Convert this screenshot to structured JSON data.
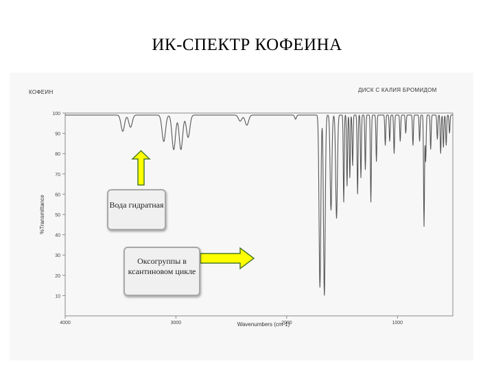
{
  "slide": {
    "title": "ИК-СПЕКТР КОФЕИНА"
  },
  "scan": {
    "sample_label": "КОФЕИН",
    "method_label": "ДИСК С КАЛИЯ БРОМИДОМ"
  },
  "callouts": {
    "water": "Вода гидратная",
    "oxo": "Оксогруппы в ксантиновом цикле"
  },
  "colors": {
    "arrow_fill": "#ffff00",
    "arrow_stroke": "#4a7a2a",
    "callout_border": "#a8a8a8",
    "trace": "#555555"
  },
  "chart_data": {
    "type": "line",
    "title": "",
    "xlabel": "Wavenumbers (cm-1)",
    "ylabel": "%Transmittance",
    "xlim": [
      4000,
      500
    ],
    "ylim": [
      0,
      100
    ],
    "x_ticks": [
      4000,
      3000,
      2000,
      1000
    ],
    "y_ticks": [
      10,
      20,
      30,
      40,
      50,
      60,
      70,
      80,
      90,
      100
    ],
    "grid": false,
    "baseline": 99,
    "peaks": [
      {
        "x": 3480,
        "min": 91
      },
      {
        "x": 3410,
        "min": 93
      },
      {
        "x": 3110,
        "min": 86
      },
      {
        "x": 3020,
        "min": 82
      },
      {
        "x": 2955,
        "min": 82
      },
      {
        "x": 2890,
        "min": 88
      },
      {
        "x": 2420,
        "min": 96
      },
      {
        "x": 2360,
        "min": 94
      },
      {
        "x": 1920,
        "min": 97
      },
      {
        "x": 1700,
        "min": 14
      },
      {
        "x": 1660,
        "min": 10
      },
      {
        "x": 1600,
        "min": 52
      },
      {
        "x": 1550,
        "min": 48
      },
      {
        "x": 1485,
        "min": 56
      },
      {
        "x": 1455,
        "min": 64
      },
      {
        "x": 1430,
        "min": 68
      },
      {
        "x": 1405,
        "min": 74
      },
      {
        "x": 1360,
        "min": 60
      },
      {
        "x": 1330,
        "min": 68
      },
      {
        "x": 1290,
        "min": 72
      },
      {
        "x": 1240,
        "min": 56
      },
      {
        "x": 1190,
        "min": 76
      },
      {
        "x": 1110,
        "min": 84
      },
      {
        "x": 1070,
        "min": 86
      },
      {
        "x": 1030,
        "min": 80
      },
      {
        "x": 975,
        "min": 86
      },
      {
        "x": 925,
        "min": 90
      },
      {
        "x": 860,
        "min": 84
      },
      {
        "x": 800,
        "min": 86
      },
      {
        "x": 760,
        "min": 44
      },
      {
        "x": 745,
        "min": 76
      },
      {
        "x": 700,
        "min": 82
      },
      {
        "x": 640,
        "min": 87
      },
      {
        "x": 610,
        "min": 80
      },
      {
        "x": 585,
        "min": 83
      },
      {
        "x": 560,
        "min": 84
      },
      {
        "x": 530,
        "min": 90
      }
    ]
  }
}
